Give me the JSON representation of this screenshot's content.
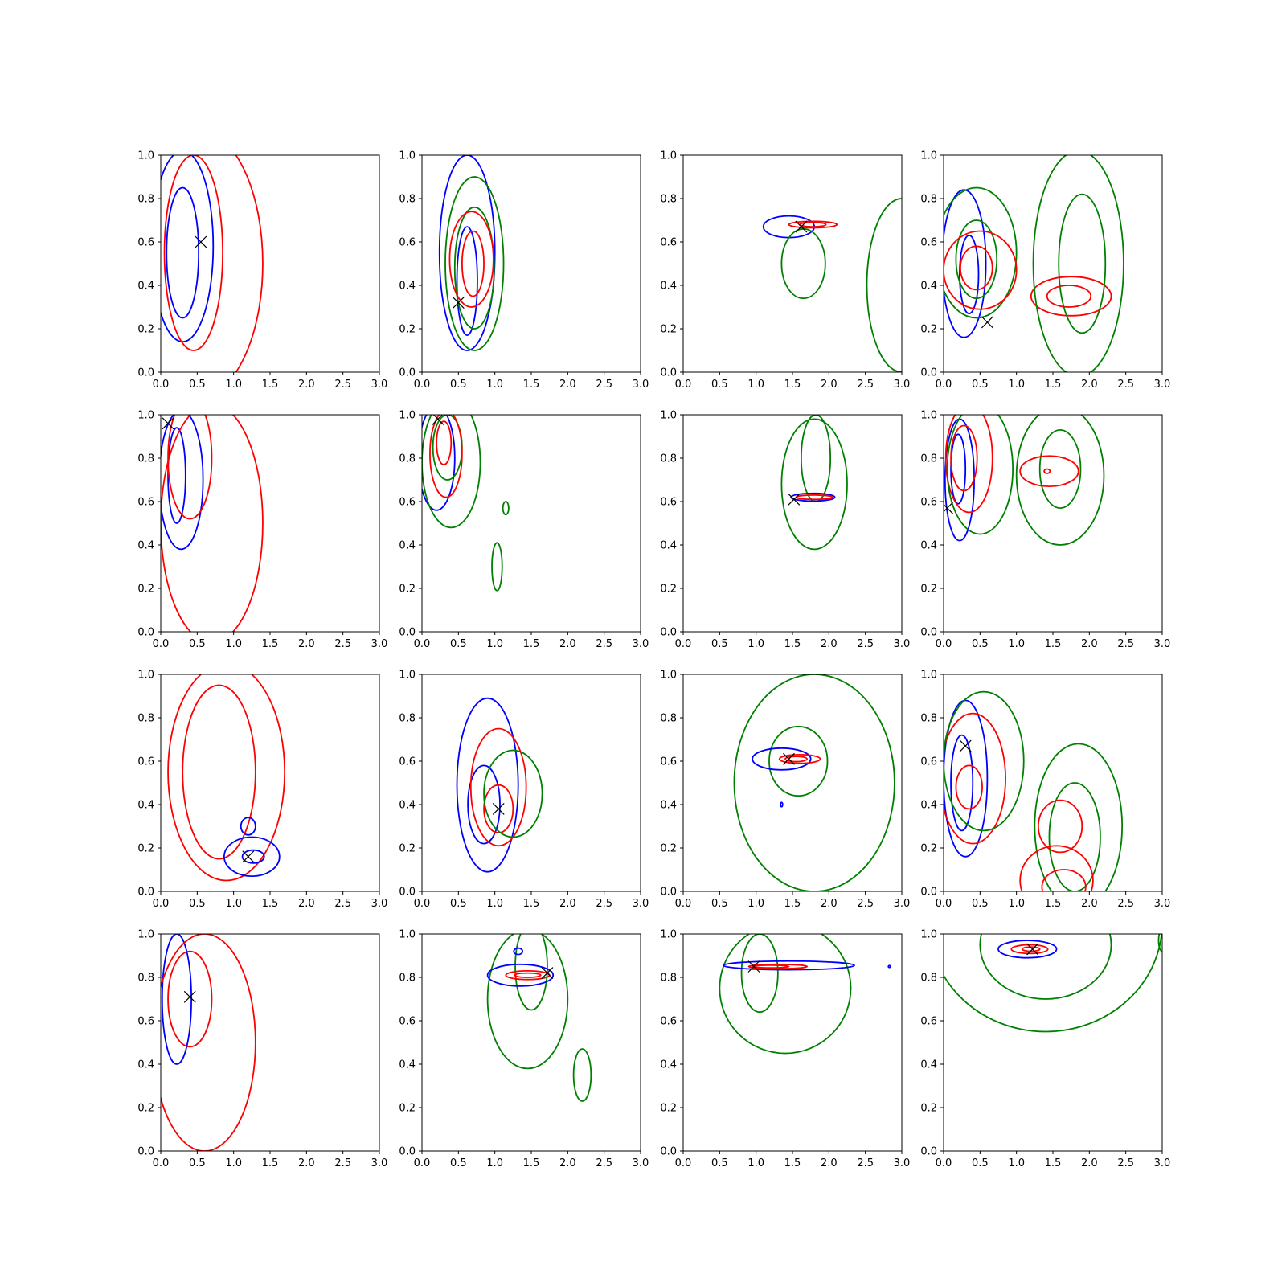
{
  "colors": {
    "blue": "#0000ff",
    "red": "#ff0000",
    "green": "#008000",
    "marker": "#000000"
  },
  "chart_data": {
    "type": "contour-grid",
    "layout": {
      "rows": 4,
      "cols": 4
    },
    "xlim": [
      0,
      3.0
    ],
    "ylim": [
      0,
      1.0
    ],
    "xticks": [
      "0.0",
      "0.5",
      "1.0",
      "1.5",
      "2.0",
      "2.5",
      "3.0"
    ],
    "yticks": [
      "0.0",
      "0.2",
      "0.4",
      "0.6",
      "0.8",
      "1.0"
    ],
    "grid": false,
    "legend": "none",
    "panels": [
      {
        "marker": [
          0.55,
          0.6
        ],
        "contours": [
          {
            "color": "blue",
            "cx": 0.3,
            "cy": 0.58,
            "rx": 0.42,
            "ry": 0.44
          },
          {
            "color": "blue",
            "cx": 0.3,
            "cy": 0.55,
            "rx": 0.22,
            "ry": 0.3
          },
          {
            "color": "red",
            "cx": 0.5,
            "cy": 0.5,
            "rx": 0.9,
            "ry": 0.62
          },
          {
            "color": "red",
            "cx": 0.45,
            "cy": 0.55,
            "rx": 0.4,
            "ry": 0.45
          }
        ]
      },
      {
        "marker": [
          0.5,
          0.32
        ],
        "contours": [
          {
            "color": "blue",
            "cx": 0.62,
            "cy": 0.55,
            "rx": 0.38,
            "ry": 0.45
          },
          {
            "color": "blue",
            "cx": 0.62,
            "cy": 0.42,
            "rx": 0.14,
            "ry": 0.25
          },
          {
            "color": "green",
            "cx": 0.72,
            "cy": 0.5,
            "rx": 0.4,
            "ry": 0.4
          },
          {
            "color": "green",
            "cx": 0.72,
            "cy": 0.48,
            "rx": 0.27,
            "ry": 0.28
          },
          {
            "color": "red",
            "cx": 0.68,
            "cy": 0.52,
            "rx": 0.3,
            "ry": 0.22
          },
          {
            "color": "red",
            "cx": 0.7,
            "cy": 0.5,
            "rx": 0.15,
            "ry": 0.15
          }
        ]
      },
      {
        "marker": [
          1.62,
          0.67
        ],
        "contours": [
          {
            "color": "blue",
            "cx": 1.45,
            "cy": 0.67,
            "rx": 0.35,
            "ry": 0.05
          },
          {
            "color": "red",
            "cx": 1.78,
            "cy": 0.68,
            "rx": 0.33,
            "ry": 0.015
          },
          {
            "color": "red",
            "cx": 1.78,
            "cy": 0.68,
            "rx": 0.18,
            "ry": 0.01
          },
          {
            "color": "green",
            "cx": 1.65,
            "cy": 0.5,
            "rx": 0.3,
            "ry": 0.16
          },
          {
            "color": "green",
            "cx": 3.0,
            "cy": 0.4,
            "rx": 0.48,
            "ry": 0.4
          }
        ]
      },
      {
        "marker": [
          0.6,
          0.23
        ],
        "contours": [
          {
            "color": "blue",
            "cx": 0.28,
            "cy": 0.5,
            "rx": 0.3,
            "ry": 0.34
          },
          {
            "color": "blue",
            "cx": 0.35,
            "cy": 0.45,
            "rx": 0.13,
            "ry": 0.18
          },
          {
            "color": "green",
            "cx": 0.45,
            "cy": 0.55,
            "rx": 0.55,
            "ry": 0.3
          },
          {
            "color": "green",
            "cx": 0.45,
            "cy": 0.52,
            "rx": 0.28,
            "ry": 0.18
          },
          {
            "color": "red",
            "cx": 0.5,
            "cy": 0.47,
            "rx": 0.5,
            "ry": 0.18
          },
          {
            "color": "red",
            "cx": 0.45,
            "cy": 0.48,
            "rx": 0.22,
            "ry": 0.1
          },
          {
            "color": "red",
            "cx": 1.75,
            "cy": 0.35,
            "rx": 0.55,
            "ry": 0.09
          },
          {
            "color": "red",
            "cx": 1.72,
            "cy": 0.35,
            "rx": 0.3,
            "ry": 0.05
          },
          {
            "color": "green",
            "cx": 1.85,
            "cy": 0.5,
            "rx": 0.62,
            "ry": 0.52
          },
          {
            "color": "green",
            "cx": 1.9,
            "cy": 0.5,
            "rx": 0.32,
            "ry": 0.32
          }
        ]
      },
      {
        "marker": [
          0.1,
          0.96
        ],
        "contours": [
          {
            "color": "blue",
            "cx": 0.28,
            "cy": 0.7,
            "rx": 0.3,
            "ry": 0.32
          },
          {
            "color": "blue",
            "cx": 0.22,
            "cy": 0.72,
            "rx": 0.12,
            "ry": 0.22
          },
          {
            "color": "red",
            "cx": 0.7,
            "cy": 0.5,
            "rx": 0.7,
            "ry": 0.55
          },
          {
            "color": "red",
            "cx": 0.4,
            "cy": 0.8,
            "rx": 0.3,
            "ry": 0.28
          }
        ]
      },
      {
        "marker": [
          0.22,
          0.98
        ],
        "contours": [
          {
            "color": "blue",
            "cx": 0.2,
            "cy": 0.8,
            "rx": 0.25,
            "ry": 0.24
          },
          {
            "color": "green",
            "cx": 0.4,
            "cy": 0.78,
            "rx": 0.4,
            "ry": 0.3
          },
          {
            "color": "green",
            "cx": 0.35,
            "cy": 0.85,
            "rx": 0.2,
            "ry": 0.15
          },
          {
            "color": "red",
            "cx": 0.33,
            "cy": 0.82,
            "rx": 0.22,
            "ry": 0.2
          },
          {
            "color": "red",
            "cx": 0.3,
            "cy": 0.87,
            "rx": 0.1,
            "ry": 0.1
          },
          {
            "color": "green",
            "cx": 1.15,
            "cy": 0.57,
            "rx": 0.04,
            "ry": 0.03
          },
          {
            "color": "green",
            "cx": 1.03,
            "cy": 0.3,
            "rx": 0.07,
            "ry": 0.11
          }
        ]
      },
      {
        "marker": [
          1.52,
          0.61
        ],
        "contours": [
          {
            "color": "green",
            "cx": 1.8,
            "cy": 0.68,
            "rx": 0.45,
            "ry": 0.3
          },
          {
            "color": "green",
            "cx": 1.82,
            "cy": 0.8,
            "rx": 0.2,
            "ry": 0.2
          },
          {
            "color": "blue",
            "cx": 1.78,
            "cy": 0.62,
            "rx": 0.3,
            "ry": 0.018
          },
          {
            "color": "red",
            "cx": 1.8,
            "cy": 0.62,
            "rx": 0.25,
            "ry": 0.01
          }
        ]
      },
      {
        "marker": [
          0.05,
          0.57
        ],
        "contours": [
          {
            "color": "blue",
            "cx": 0.22,
            "cy": 0.7,
            "rx": 0.2,
            "ry": 0.28
          },
          {
            "color": "blue",
            "cx": 0.2,
            "cy": 0.75,
            "rx": 0.1,
            "ry": 0.16
          },
          {
            "color": "red",
            "cx": 0.35,
            "cy": 0.8,
            "rx": 0.32,
            "ry": 0.25
          },
          {
            "color": "red",
            "cx": 0.28,
            "cy": 0.8,
            "rx": 0.18,
            "ry": 0.15
          },
          {
            "color": "green",
            "cx": 0.5,
            "cy": 0.75,
            "rx": 0.45,
            "ry": 0.3
          },
          {
            "color": "green",
            "cx": 1.6,
            "cy": 0.72,
            "rx": 0.6,
            "ry": 0.32
          },
          {
            "color": "green",
            "cx": 1.6,
            "cy": 0.75,
            "rx": 0.28,
            "ry": 0.18
          },
          {
            "color": "red",
            "cx": 1.45,
            "cy": 0.74,
            "rx": 0.4,
            "ry": 0.07
          },
          {
            "color": "red",
            "cx": 1.42,
            "cy": 0.74,
            "rx": 0.04,
            "ry": 0.01
          }
        ]
      },
      {
        "marker": [
          1.2,
          0.16
        ],
        "contours": [
          {
            "color": "red",
            "cx": 0.9,
            "cy": 0.55,
            "rx": 0.8,
            "ry": 0.5
          },
          {
            "color": "red",
            "cx": 0.8,
            "cy": 0.55,
            "rx": 0.5,
            "ry": 0.4
          },
          {
            "color": "blue",
            "cx": 1.25,
            "cy": 0.16,
            "rx": 0.38,
            "ry": 0.09
          },
          {
            "color": "blue",
            "cx": 1.27,
            "cy": 0.16,
            "rx": 0.15,
            "ry": 0.03
          },
          {
            "color": "blue",
            "cx": 1.2,
            "cy": 0.3,
            "rx": 0.1,
            "ry": 0.04
          }
        ]
      },
      {
        "marker": [
          1.05,
          0.38
        ],
        "contours": [
          {
            "color": "blue",
            "cx": 0.9,
            "cy": 0.49,
            "rx": 0.42,
            "ry": 0.4
          },
          {
            "color": "blue",
            "cx": 0.85,
            "cy": 0.4,
            "rx": 0.22,
            "ry": 0.18
          },
          {
            "color": "red",
            "cx": 1.05,
            "cy": 0.48,
            "rx": 0.38,
            "ry": 0.27
          },
          {
            "color": "red",
            "cx": 1.05,
            "cy": 0.38,
            "rx": 0.2,
            "ry": 0.11
          },
          {
            "color": "green",
            "cx": 1.25,
            "cy": 0.45,
            "rx": 0.4,
            "ry": 0.2
          }
        ]
      },
      {
        "marker": [
          1.45,
          0.61
        ],
        "contours": [
          {
            "color": "green",
            "cx": 1.8,
            "cy": 0.5,
            "rx": 1.1,
            "ry": 0.5
          },
          {
            "color": "green",
            "cx": 1.58,
            "cy": 0.6,
            "rx": 0.4,
            "ry": 0.16
          },
          {
            "color": "blue",
            "cx": 1.35,
            "cy": 0.61,
            "rx": 0.4,
            "ry": 0.05
          },
          {
            "color": "red",
            "cx": 1.6,
            "cy": 0.61,
            "rx": 0.28,
            "ry": 0.02
          },
          {
            "color": "red",
            "cx": 1.55,
            "cy": 0.61,
            "rx": 0.15,
            "ry": 0.012
          },
          {
            "color": "blue",
            "cx": 1.35,
            "cy": 0.4,
            "rx": 0.015,
            "ry": 0.01
          }
        ]
      },
      {
        "marker": [
          0.3,
          0.67
        ],
        "contours": [
          {
            "color": "blue",
            "cx": 0.3,
            "cy": 0.52,
            "rx": 0.3,
            "ry": 0.36
          },
          {
            "color": "blue",
            "cx": 0.25,
            "cy": 0.5,
            "rx": 0.15,
            "ry": 0.22
          },
          {
            "color": "red",
            "cx": 0.4,
            "cy": 0.52,
            "rx": 0.45,
            "ry": 0.3
          },
          {
            "color": "red",
            "cx": 0.35,
            "cy": 0.48,
            "rx": 0.18,
            "ry": 0.1
          },
          {
            "color": "green",
            "cx": 0.55,
            "cy": 0.6,
            "rx": 0.55,
            "ry": 0.32
          },
          {
            "color": "green",
            "cx": 1.85,
            "cy": 0.3,
            "rx": 0.6,
            "ry": 0.38
          },
          {
            "color": "green",
            "cx": 1.8,
            "cy": 0.25,
            "rx": 0.35,
            "ry": 0.25
          },
          {
            "color": "red",
            "cx": 1.6,
            "cy": 0.3,
            "rx": 0.3,
            "ry": 0.12
          },
          {
            "color": "red",
            "cx": 1.55,
            "cy": 0.05,
            "rx": 0.5,
            "ry": 0.16
          },
          {
            "color": "red",
            "cx": 1.65,
            "cy": 0.02,
            "rx": 0.3,
            "ry": 0.08
          }
        ]
      },
      {
        "marker": [
          0.4,
          0.71
        ],
        "contours": [
          {
            "color": "blue",
            "cx": 0.22,
            "cy": 0.7,
            "rx": 0.2,
            "ry": 0.3
          },
          {
            "color": "red",
            "cx": 0.6,
            "cy": 0.5,
            "rx": 0.7,
            "ry": 0.5
          },
          {
            "color": "red",
            "cx": 0.4,
            "cy": 0.7,
            "rx": 0.3,
            "ry": 0.22
          }
        ]
      },
      {
        "marker": [
          1.72,
          0.82
        ],
        "contours": [
          {
            "color": "green",
            "cx": 1.45,
            "cy": 0.7,
            "rx": 0.55,
            "ry": 0.32
          },
          {
            "color": "green",
            "cx": 1.5,
            "cy": 0.85,
            "rx": 0.22,
            "ry": 0.2
          },
          {
            "color": "green",
            "cx": 2.2,
            "cy": 0.35,
            "rx": 0.12,
            "ry": 0.12
          },
          {
            "color": "blue",
            "cx": 1.35,
            "cy": 0.81,
            "rx": 0.45,
            "ry": 0.05
          },
          {
            "color": "blue",
            "cx": 1.32,
            "cy": 0.92,
            "rx": 0.06,
            "ry": 0.015
          },
          {
            "color": "red",
            "cx": 1.45,
            "cy": 0.81,
            "rx": 0.3,
            "ry": 0.02
          },
          {
            "color": "red",
            "cx": 1.45,
            "cy": 0.81,
            "rx": 0.18,
            "ry": 0.01
          }
        ]
      },
      {
        "marker": [
          0.97,
          0.85
        ],
        "contours": [
          {
            "color": "green",
            "cx": 1.4,
            "cy": 0.75,
            "rx": 0.9,
            "ry": 0.3
          },
          {
            "color": "green",
            "cx": 1.05,
            "cy": 0.82,
            "rx": 0.25,
            "ry": 0.18
          },
          {
            "color": "blue",
            "cx": 1.45,
            "cy": 0.855,
            "rx": 0.9,
            "ry": 0.02
          },
          {
            "color": "red",
            "cx": 1.3,
            "cy": 0.85,
            "rx": 0.4,
            "ry": 0.01
          },
          {
            "color": "red",
            "cx": 1.2,
            "cy": 0.85,
            "rx": 0.25,
            "ry": 0.006
          },
          {
            "color": "blue",
            "cx": 2.83,
            "cy": 0.85,
            "rx": 0.015,
            "ry": 0.004
          }
        ]
      },
      {
        "marker": [
          1.22,
          0.93
        ],
        "contours": [
          {
            "color": "green",
            "cx": 1.4,
            "cy": 1.05,
            "rx": 1.6,
            "ry": 0.5
          },
          {
            "color": "green",
            "cx": 1.4,
            "cy": 0.95,
            "rx": 0.9,
            "ry": 0.25
          },
          {
            "color": "green",
            "cx": 3.0,
            "cy": 0.97,
            "rx": 0.05,
            "ry": 0.05
          },
          {
            "color": "blue",
            "cx": 1.15,
            "cy": 0.93,
            "rx": 0.4,
            "ry": 0.04
          },
          {
            "color": "red",
            "cx": 1.18,
            "cy": 0.93,
            "rx": 0.25,
            "ry": 0.02
          },
          {
            "color": "red",
            "cx": 1.2,
            "cy": 0.93,
            "rx": 0.12,
            "ry": 0.01
          }
        ]
      }
    ]
  }
}
